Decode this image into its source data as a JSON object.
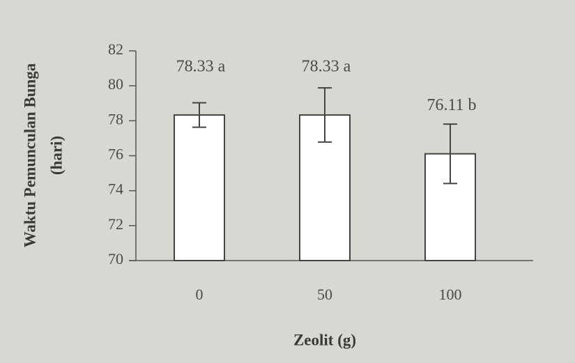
{
  "chart_data": {
    "type": "bar",
    "categories": [
      "0",
      "50",
      "100"
    ],
    "values": [
      78.33,
      78.33,
      76.11
    ],
    "errors": [
      0.7,
      1.55,
      1.7
    ],
    "value_labels": [
      "78.33 a",
      "78.33 a",
      "76.11 b"
    ],
    "color": "#ffffff",
    "ylim": [
      70,
      82
    ],
    "yticks": [
      70,
      72,
      74,
      76,
      78,
      80,
      82
    ],
    "y_label": [
      "Waktu Pemunculan Bunga",
      "(hari)"
    ],
    "x_label": "Zeolit (g)",
    "grid": false
  }
}
